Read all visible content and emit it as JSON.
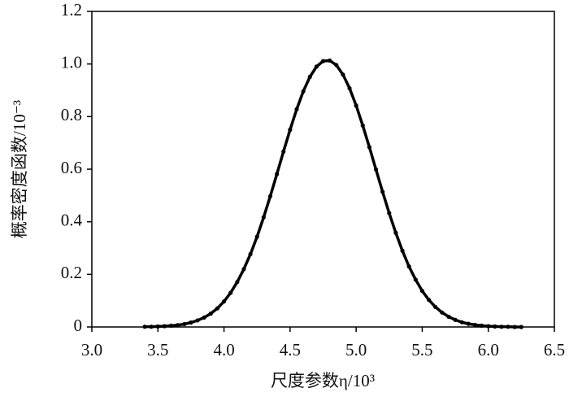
{
  "chart_data": {
    "type": "line",
    "xlabel": "尺度参数η/10³",
    "ylabel": "概率密度函数/10⁻³",
    "x": [
      3.4,
      3.45,
      3.5,
      3.55,
      3.6,
      3.65,
      3.7,
      3.75,
      3.8,
      3.85,
      3.9,
      3.95,
      4.0,
      4.05,
      4.1,
      4.15,
      4.2,
      4.25,
      4.3,
      4.35,
      4.4,
      4.45,
      4.5,
      4.55,
      4.6,
      4.65,
      4.7,
      4.75,
      4.8,
      4.85,
      4.9,
      4.95,
      5.0,
      5.05,
      5.1,
      5.15,
      5.2,
      5.25,
      5.3,
      5.35,
      5.4,
      5.45,
      5.5,
      5.55,
      5.6,
      5.65,
      5.7,
      5.75,
      5.8,
      5.85,
      5.9,
      5.95,
      6.0,
      6.05,
      6.1,
      6.15,
      6.2,
      6.25
    ],
    "series": [
      {
        "color": "#000000",
        "values": [
          0.001,
          0.001,
          0.002,
          0.003,
          0.005,
          0.007,
          0.011,
          0.017,
          0.025,
          0.036,
          0.051,
          0.071,
          0.097,
          0.13,
          0.171,
          0.22,
          0.277,
          0.343,
          0.417,
          0.497,
          0.581,
          0.667,
          0.75,
          0.828,
          0.896,
          0.951,
          0.99,
          1.011,
          1.013,
          0.996,
          0.96,
          0.908,
          0.842,
          0.766,
          0.684,
          0.599,
          0.514,
          0.433,
          0.358,
          0.29,
          0.23,
          0.18,
          0.137,
          0.103,
          0.076,
          0.055,
          0.039,
          0.027,
          0.018,
          0.012,
          0.008,
          0.005,
          0.003,
          0.002,
          0.001,
          0.001,
          0,
          0
        ]
      }
    ],
    "xlim": [
      3,
      6.5
    ],
    "xticks": [
      {
        "value": 3,
        "label": "3.0"
      },
      3.5,
      {
        "value": 4,
        "label": "4.0"
      },
      4.5,
      {
        "value": 5,
        "label": "5.0"
      },
      5.5,
      {
        "value": 6,
        "label": "6.0"
      },
      6.5
    ],
    "ylim": [
      0,
      1.2
    ],
    "yticks": [
      0,
      0.2,
      0.4,
      0.6,
      0.8,
      {
        "value": 1,
        "label": "1.0"
      },
      1.2
    ],
    "grid": false
  }
}
